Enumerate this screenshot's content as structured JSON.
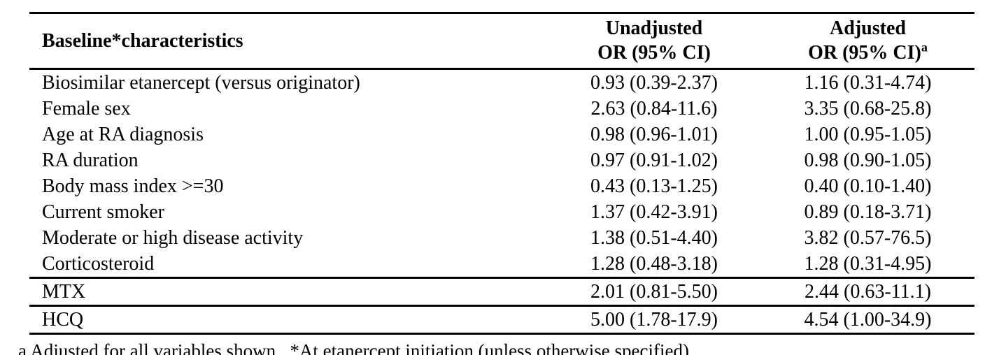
{
  "table": {
    "header": {
      "baseline": "Baseline*characteristics",
      "unadjusted_line1": "Unadjusted",
      "unadjusted_line2": "OR (95% CI)",
      "adjusted_line1": "Adjusted",
      "adjusted_line2": "OR (95% CI)",
      "adjusted_superscript": "a"
    },
    "rows": [
      {
        "label": "Biosimilar etanercept (versus originator)",
        "unadjusted": "0.93 (0.39-2.37)",
        "adjusted": "1.16 (0.31-4.74)"
      },
      {
        "label": "Female sex",
        "unadjusted": "2.63 (0.84-11.6)",
        "adjusted": "3.35 (0.68-25.8)"
      },
      {
        "label": "Age at RA diagnosis",
        "unadjusted": "0.98 (0.96-1.01)",
        "adjusted": "1.00 (0.95-1.05)"
      },
      {
        "label": "RA duration",
        "unadjusted": "0.97 (0.91-1.02)",
        "adjusted": "0.98 (0.90-1.05)"
      },
      {
        "label": "Body mass index >=30",
        "unadjusted": "0.43 (0.13-1.25)",
        "adjusted": "0.40 (0.10-1.40)"
      },
      {
        "label": "Current smoker",
        "unadjusted": "1.37 (0.42-3.91)",
        "adjusted": "0.89 (0.18-3.71)"
      },
      {
        "label": "Moderate or high disease activity",
        "unadjusted": "1.38 (0.51-4.40)",
        "adjusted": "3.82 (0.57-76.5)"
      },
      {
        "label": "Corticosteroid",
        "unadjusted": "1.28 (0.48-3.18)",
        "adjusted": "1.28 (0.31-4.95)"
      },
      {
        "label": "MTX",
        "unadjusted": "2.01 (0.81-5.50)",
        "adjusted": "2.44 (0.63-11.1)"
      },
      {
        "label": "HCQ",
        "unadjusted": "5.00 (1.78-17.9)",
        "adjusted": "4.54 (1.00-34.9)"
      }
    ],
    "footnote": "a Adjusted for all variables shown.  *At etanercept initiation (unless otherwise specified)",
    "colors": {
      "text": "#000000",
      "background": "#ffffff",
      "rule": "#000000"
    }
  }
}
